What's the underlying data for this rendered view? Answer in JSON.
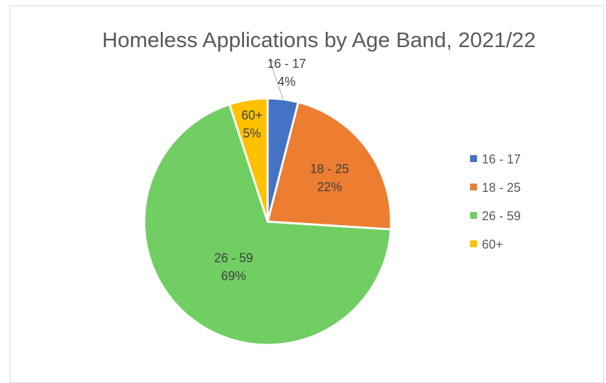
{
  "chart_data": {
    "type": "pie",
    "title": "Homeless Applications by Age Band, 2021/22",
    "slices": [
      {
        "label": "16 - 17",
        "value": 4,
        "display": "4%",
        "color": "#4472C4"
      },
      {
        "label": "18 - 25",
        "value": 22,
        "display": "22%",
        "color": "#ED7D31"
      },
      {
        "label": "26 - 59",
        "value": 69,
        "display": "69%",
        "color": "#70CE62"
      },
      {
        "label": "60+",
        "value": 5,
        "display": "5%",
        "color": "#FFC000"
      }
    ],
    "legend_position": "right"
  }
}
